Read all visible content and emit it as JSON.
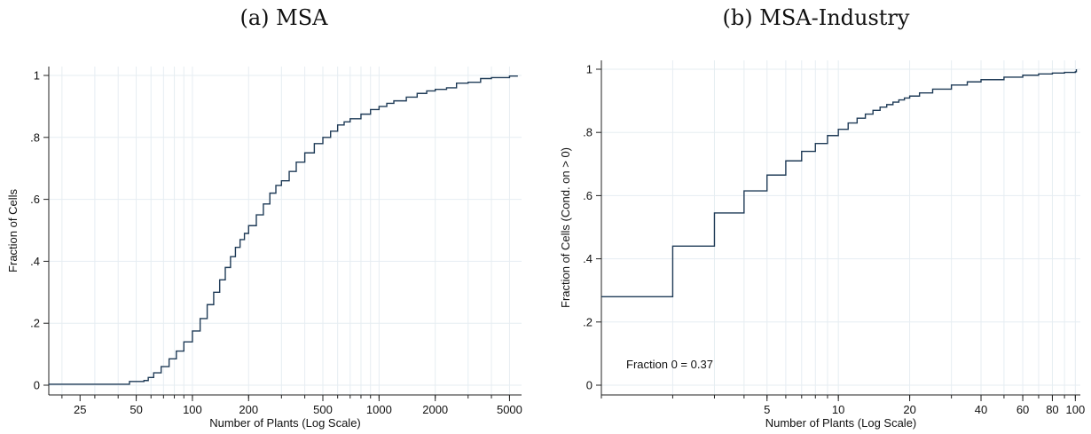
{
  "colors": {
    "line": "#1f3b57",
    "grid": "#e6edf2",
    "axis": "#222222"
  },
  "chart_data": [
    {
      "type": "line",
      "step": true,
      "title": "(a) MSA",
      "xlabel": "Number of Plants (Log Scale)",
      "ylabel": "Fraction of Cells",
      "xscale": "log",
      "xlim": [
        17,
        5800
      ],
      "ylim": [
        0,
        1
      ],
      "xticks": [
        25,
        50,
        100,
        200,
        500,
        1000,
        2000,
        5000
      ],
      "xtick_labels": [
        "25",
        "50",
        "100",
        "200",
        "500",
        "1000",
        "2000",
        "5000"
      ],
      "yticks": [
        0,
        0.2,
        0.4,
        0.6,
        0.8,
        1
      ],
      "ytick_labels": [
        "0",
        ".2",
        ".4",
        ".6",
        ".8",
        "1"
      ],
      "grid": true,
      "series": [
        {
          "x": [
            17,
            45,
            46,
            55,
            58,
            62,
            68,
            75,
            82,
            90,
            100,
            110,
            120,
            130,
            140,
            150,
            160,
            170,
            180,
            190,
            200,
            220,
            240,
            260,
            280,
            300,
            330,
            360,
            400,
            450,
            500,
            550,
            600,
            650,
            700,
            800,
            900,
            1000,
            1100,
            1200,
            1400,
            1600,
            1800,
            2000,
            2300,
            2600,
            3000,
            3500,
            4000,
            5000,
            5500
          ],
          "y": [
            0.003,
            0.003,
            0.012,
            0.015,
            0.025,
            0.04,
            0.06,
            0.085,
            0.11,
            0.14,
            0.175,
            0.215,
            0.26,
            0.3,
            0.34,
            0.38,
            0.415,
            0.445,
            0.47,
            0.49,
            0.515,
            0.55,
            0.585,
            0.62,
            0.645,
            0.66,
            0.69,
            0.72,
            0.75,
            0.78,
            0.8,
            0.82,
            0.84,
            0.85,
            0.86,
            0.875,
            0.89,
            0.9,
            0.91,
            0.918,
            0.93,
            0.942,
            0.95,
            0.955,
            0.96,
            0.975,
            0.978,
            0.99,
            0.993,
            0.998,
            1
          ]
        }
      ]
    },
    {
      "type": "line",
      "step": true,
      "title": "(b) MSA-Industry",
      "xlabel": "Number of Plants (Log Scale)",
      "ylabel": "Fraction of Cells (Cond. on > 0)",
      "xscale": "log",
      "xlim": [
        1,
        105
      ],
      "ylim": [
        0,
        1
      ],
      "xticks": [
        5,
        10,
        20,
        40,
        60,
        80,
        100
      ],
      "xtick_labels": [
        "5",
        "10",
        "20",
        "40",
        "60",
        "80",
        "100"
      ],
      "yticks": [
        0,
        0.2,
        0.4,
        0.6,
        0.8,
        1
      ],
      "ytick_labels": [
        "0",
        ".2",
        ".4",
        ".6",
        ".8",
        "1"
      ],
      "grid": true,
      "annotation": "Fraction 0 = 0.37",
      "series": [
        {
          "x": [
            1,
            2,
            3,
            4,
            5,
            6,
            7,
            8,
            9,
            10,
            11,
            12,
            13,
            14,
            15,
            16,
            17,
            18,
            19,
            20,
            22,
            25,
            30,
            35,
            40,
            50,
            60,
            70,
            80,
            90,
            100,
            101
          ],
          "y": [
            0.28,
            0.44,
            0.545,
            0.615,
            0.665,
            0.71,
            0.74,
            0.765,
            0.79,
            0.81,
            0.83,
            0.845,
            0.858,
            0.87,
            0.88,
            0.888,
            0.896,
            0.903,
            0.909,
            0.915,
            0.925,
            0.937,
            0.95,
            0.96,
            0.967,
            0.975,
            0.981,
            0.985,
            0.988,
            0.99,
            0.992,
            1
          ]
        }
      ]
    }
  ]
}
